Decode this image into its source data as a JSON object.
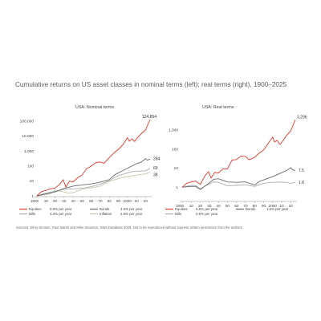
{
  "title": "Cumulative returns on US asset classes in nominal terms (left); real terms (right), 1900–2025",
  "footnote": "Sources: Elroy Dimson, Paul Marsh and Mike Staunton, DMS Database 2026. Not to be reproduced without express written permission from the authors.",
  "chart_data": [
    {
      "type": "line",
      "title": "USA: Nominal terms",
      "yscale": "log",
      "ylim": [
        1,
        200000
      ],
      "y_ticks": [
        1,
        10,
        100,
        1000,
        10000,
        100000
      ],
      "y_tick_labels": [
        "1",
        "10",
        "100",
        "1,000",
        "10,000",
        "100,000"
      ],
      "xlim": [
        1900,
        2025
      ],
      "x_ticks": [
        1900,
        1910,
        1920,
        1930,
        1940,
        1950,
        1960,
        1970,
        1980,
        1990,
        2000,
        2010,
        2020
      ],
      "x_tick_labels": [
        "1900",
        "10",
        "20",
        "30",
        "40",
        "50",
        "60",
        "70",
        "80",
        "90",
        "2000",
        "10",
        "20"
      ],
      "series": [
        {
          "name": "Equities 9.8% per year",
          "color": "#e0382c",
          "end_label": "124,854",
          "x": [
            1900,
            1905,
            1910,
            1915,
            1920,
            1925,
            1929,
            1932,
            1936,
            1940,
            1945,
            1950,
            1955,
            1960,
            1965,
            1970,
            1974,
            1980,
            1985,
            1990,
            1995,
            2000,
            2002,
            2005,
            2008,
            2010,
            2015,
            2020,
            2025
          ],
          "y": [
            1,
            1.9,
            2.3,
            2.9,
            3.3,
            5.6,
            12,
            3.8,
            9.5,
            8.5,
            16,
            25,
            65,
            95,
            165,
            180,
            145,
            360,
            720,
            1250,
            2600,
            7600,
            4400,
            6300,
            4200,
            6500,
            13500,
            25000,
            124854
          ]
        },
        {
          "name": "Bonds 4.6% per year",
          "color": "#6a6a6a",
          "end_label": "284",
          "x": [
            1900,
            1910,
            1920,
            1930,
            1940,
            1950,
            1960,
            1970,
            1980,
            1985,
            1990,
            2000,
            2010,
            2015,
            2020,
            2022,
            2025
          ],
          "y": [
            1,
            1.35,
            1.8,
            3.1,
            4.4,
            5.3,
            6.2,
            8.2,
            12,
            23,
            34,
            68,
            140,
            175,
            300,
            240,
            284
          ]
        },
        {
          "name": "Bills 3.4% per year",
          "color": "#a8aeb2",
          "end_label": "69",
          "x": [
            1900,
            1910,
            1920,
            1930,
            1940,
            1950,
            1960,
            1970,
            1980,
            1985,
            1990,
            2000,
            2008,
            2015,
            2020,
            2025
          ],
          "y": [
            1,
            1.5,
            2.0,
            2.7,
            2.9,
            3.2,
            4.1,
            6.0,
            10,
            16,
            22,
            34,
            44,
            45,
            46,
            69
          ]
        },
        {
          "name": "Inflation 2.9% per year",
          "color": "#c9c5ab",
          "end_label": "38",
          "x": [
            1900,
            1910,
            1915,
            1920,
            1930,
            1935,
            1940,
            1950,
            1960,
            1970,
            1980,
            1990,
            2000,
            2010,
            2020,
            2025
          ],
          "y": [
            1,
            1.2,
            1.4,
            2.4,
            1.8,
            1.5,
            1.6,
            2.8,
            3.4,
            4.4,
            9.2,
            14,
            19,
            24,
            29,
            38
          ]
        }
      ],
      "legend": [
        {
          "label": "Equities",
          "value": "9.8% per year",
          "color": "#e0382c"
        },
        {
          "label": "Bonds",
          "value": "4.6% per year",
          "color": "#6a6a6a"
        },
        {
          "label": "Bills",
          "value": "3.4% per year",
          "color": "#a8aeb2"
        },
        {
          "label": "Inflation",
          "value": "2.9% per year",
          "color": "#c9c5ab"
        }
      ],
      "legend_placement": "bottom",
      "grid": false
    },
    {
      "type": "line",
      "title": "USA: Real terms",
      "yscale": "log",
      "ylim": [
        0.2,
        5000
      ],
      "y_ticks": [
        1,
        10,
        100,
        1000
      ],
      "y_tick_labels": [
        "1",
        "10",
        "100",
        "1,000"
      ],
      "xlim": [
        1900,
        2025
      ],
      "x_ticks": [
        1900,
        1910,
        1920,
        1930,
        1940,
        1950,
        1960,
        1970,
        1980,
        1990,
        2000,
        2010,
        2020
      ],
      "x_tick_labels": [
        "1900",
        "10",
        "20",
        "30",
        "40",
        "50",
        "60",
        "70",
        "80",
        "90",
        "2000",
        "10",
        "20"
      ],
      "series": [
        {
          "name": "Equities 6.6% per year",
          "color": "#e0382c",
          "end_label": "3,296",
          "x": [
            1900,
            1905,
            1910,
            1915,
            1920,
            1925,
            1929,
            1932,
            1936,
            1940,
            1945,
            1950,
            1955,
            1960,
            1965,
            1970,
            1974,
            1980,
            1985,
            1990,
            1995,
            2000,
            2002,
            2005,
            2008,
            2010,
            2015,
            2020,
            2025
          ],
          "y": [
            1,
            1.6,
            1.9,
            2.1,
            1.4,
            3.8,
            6.5,
            3,
            6,
            5.5,
            9,
            9,
            26,
            28,
            42,
            40,
            27,
            36,
            60,
            88,
            190,
            420,
            230,
            280,
            170,
            220,
            480,
            900,
            3296
          ]
        },
        {
          "name": "Bonds 1.6% per year",
          "color": "#6a6a6a",
          "end_label": "7.5",
          "x": [
            1900,
            1910,
            1915,
            1920,
            1930,
            1935,
            1940,
            1950,
            1960,
            1970,
            1980,
            1985,
            1990,
            2000,
            2010,
            2015,
            2020,
            2022,
            2025
          ],
          "y": [
            1,
            1.1,
            1.1,
            0.75,
            1.7,
            2.6,
            2.8,
            1.9,
            1.8,
            1.9,
            1.3,
            2,
            2.4,
            3.6,
            5.8,
            7.3,
            10.5,
            8,
            7.5
          ]
        },
        {
          "name": "Bills 0.5% per year",
          "color": "#a8aeb2",
          "end_label": "1.8",
          "x": [
            1900,
            1910,
            1915,
            1920,
            1930,
            1935,
            1940,
            1950,
            1960,
            1970,
            1980,
            1990,
            2000,
            2010,
            2015,
            2020,
            2025
          ],
          "y": [
            1,
            1.25,
            1.2,
            0.85,
            1.5,
            1.9,
            1.8,
            1.2,
            1.25,
            1.35,
            1.1,
            1.6,
            1.8,
            1.85,
            1.8,
            1.6,
            1.8
          ]
        }
      ],
      "legend": [
        {
          "label": "Equities",
          "value": "6.6% per year",
          "color": "#e0382c"
        },
        {
          "label": "Bonds",
          "value": "1.6% per year",
          "color": "#6a6a6a"
        },
        {
          "label": "Bills",
          "value": "0.5% per year",
          "color": "#a8aeb2"
        }
      ],
      "legend_placement": "bottom",
      "grid": false
    }
  ]
}
